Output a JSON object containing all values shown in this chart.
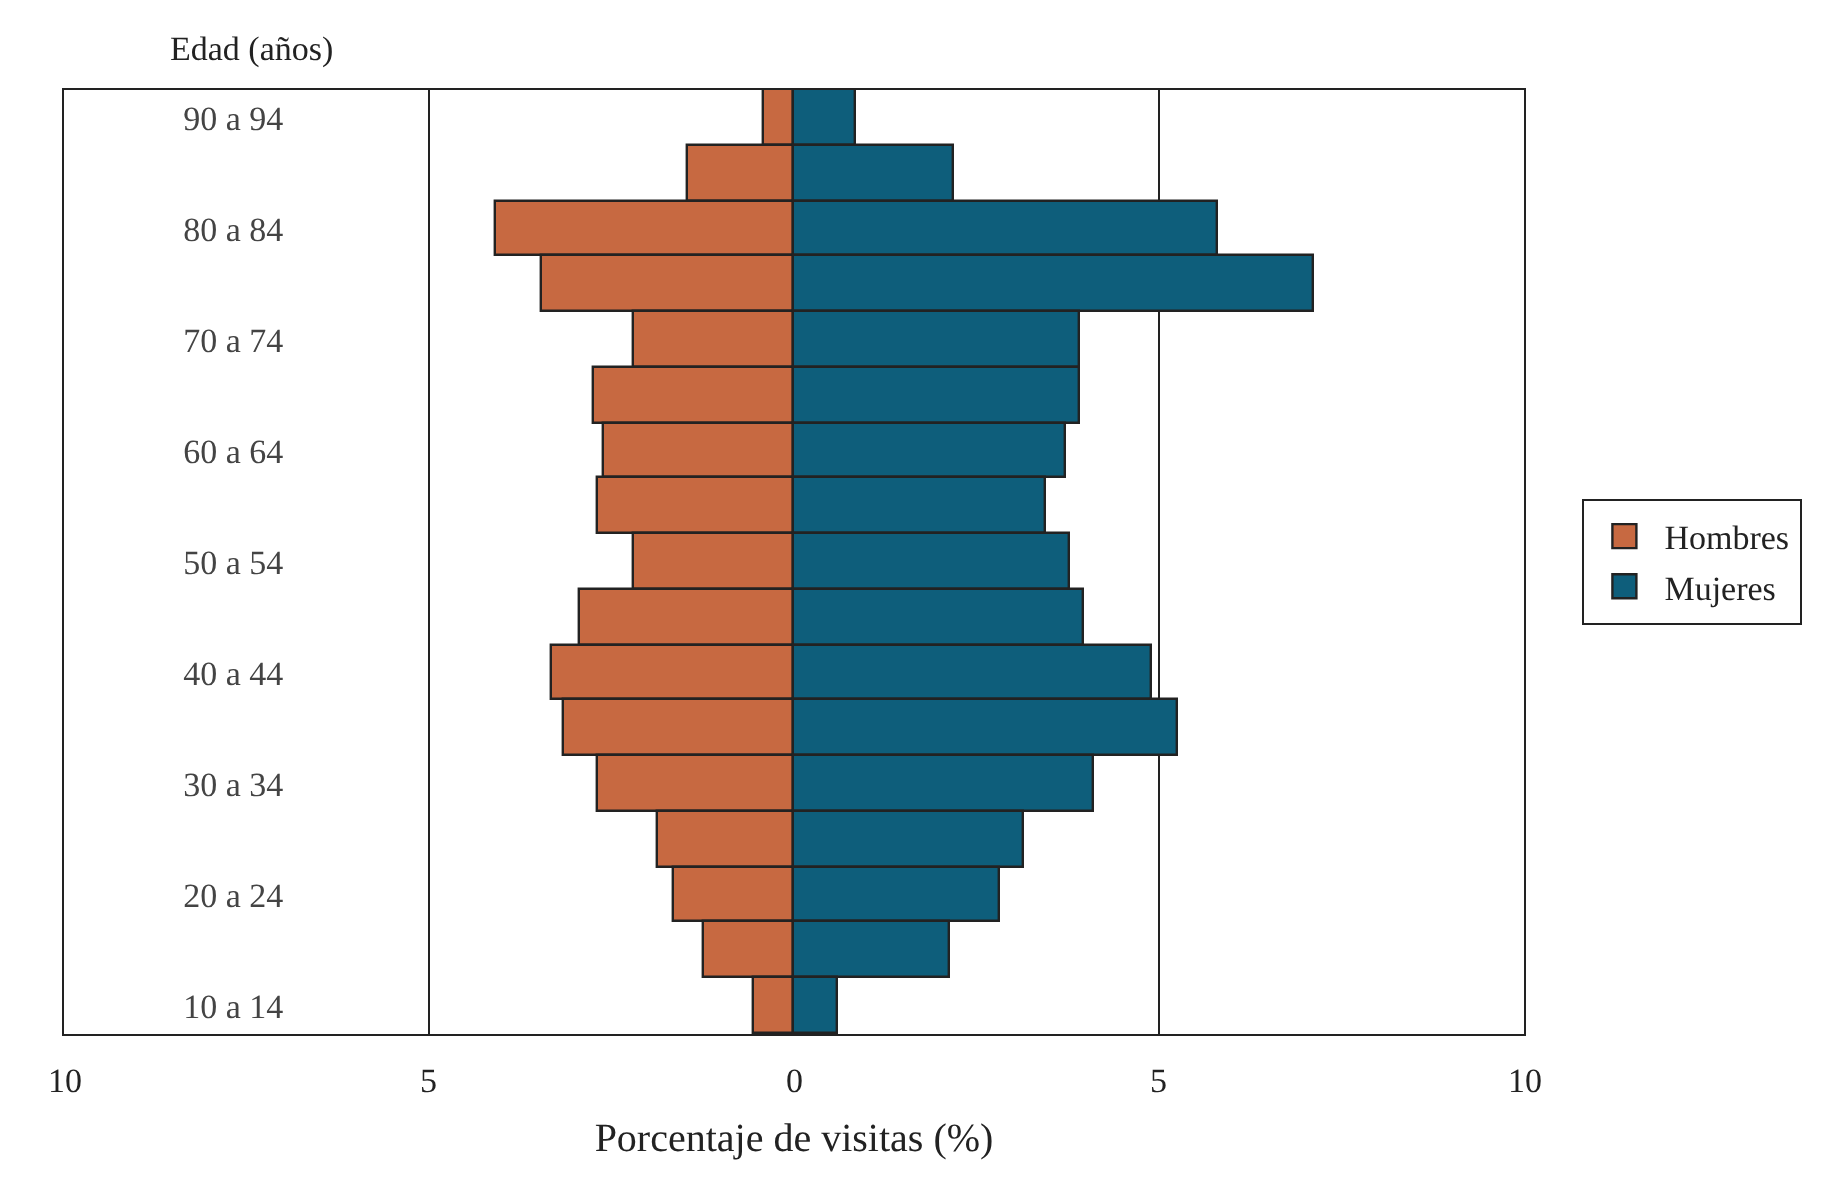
{
  "chart_data": {
    "type": "bar",
    "orientation": "horizontal",
    "ylabel": "Edad (años)",
    "xlabel": "Porcentaje de visitas (%)",
    "categories": [
      "90 a 94",
      null,
      "80 a 84",
      null,
      "70 a 74",
      null,
      "60 a 64",
      null,
      "50 a 54",
      null,
      "40 a 44",
      null,
      "30 a 34",
      null,
      "20 a 24",
      null,
      "10 a 14"
    ],
    "series": [
      {
        "name": "Hombres",
        "color": "#c76941",
        "values": [
          -0.41,
          -1.46,
          -4.08,
          -3.45,
          -2.2,
          -2.75,
          -2.59,
          -2.68,
          -2.2,
          -2.92,
          -3.32,
          -3.16,
          -2.69,
          -1.85,
          -1.65,
          -1.22,
          -0.54
        ]
      },
      {
        "name": "Mujeres",
        "color": "#0e5e7b",
        "values": [
          0.84,
          2.19,
          5.8,
          7.11,
          3.91,
          3.91,
          3.72,
          3.45,
          3.77,
          3.97,
          4.9,
          5.25,
          4.11,
          3.15,
          2.83,
          2.15,
          0.61
        ]
      }
    ],
    "xlim": [
      -10,
      10
    ],
    "xticks": [
      {
        "value": -10,
        "label": "10"
      },
      {
        "value": -5,
        "label": "5"
      },
      0,
      5,
      10
    ],
    "stacked": true,
    "grid": "x",
    "legend": "right"
  }
}
